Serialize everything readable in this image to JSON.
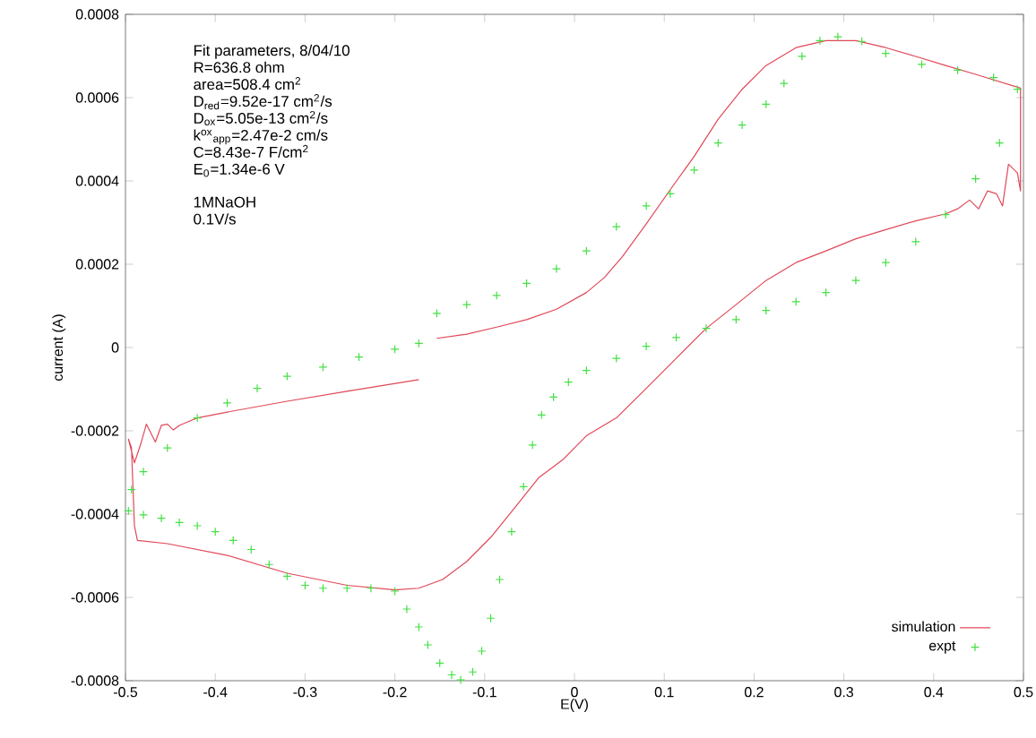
{
  "chart_data": {
    "type": "line",
    "xlabel": "E(V)",
    "ylabel": "current (A)",
    "xlim": [
      -0.5,
      0.5
    ],
    "xticks": [
      -0.5,
      -0.4,
      -0.3,
      -0.2,
      -0.1,
      0,
      0.1,
      0.2,
      0.3,
      0.4,
      0.5
    ],
    "ylim": [
      -0.0008,
      0.0008
    ],
    "yticks": [
      -0.0008,
      -0.0006,
      -0.0004,
      -0.0002,
      0,
      0.0002,
      0.0004,
      0.0006,
      0.0008
    ],
    "legend": "bottom right",
    "grid": false,
    "annotations": [
      "Fit parameters, 8/04/10",
      "R=636.8 ohm",
      "area=508.4 cm$^{2}$",
      "D$_{red}$=9.52e-17 cm$^{2}$/s",
      "D$_{ox}$=5.05e-13 cm$^{2}$/s",
      "k$^{ox}$$_{app}$=2.47e-2 cm/s",
      "C=8.43e-7 F/cm$^{2}$",
      "E$_{0}$=1.34e-6 V",
      "1MNaOH",
      "0.1V/s"
    ],
    "series": [
      {
        "name": "simulation",
        "color": "#e04858",
        "marker": "none",
        "line_style": "solid",
        "x": [
          -0.1533,
          -0.12,
          -0.0867,
          -0.0533,
          -0.02,
          0.0133,
          0.0333,
          0.0533,
          0.08,
          0.1067,
          0.1333,
          0.16,
          0.1867,
          0.2133,
          0.2467,
          0.28,
          0.3133,
          0.3467,
          0.38,
          0.4133,
          0.4467,
          0.4967,
          0.4967,
          0.4933,
          0.4833,
          0.4767,
          0.47,
          0.46,
          0.45,
          0.44,
          0.4267,
          0.4133,
          0.38,
          0.3467,
          0.3133,
          0.28,
          0.2467,
          0.2133,
          0.18,
          0.1467,
          0.1133,
          0.08,
          0.0467,
          0.0133,
          -0.0133,
          -0.04,
          -0.0667,
          -0.0933,
          -0.12,
          -0.1467,
          -0.1733,
          -0.2,
          -0.2533,
          -0.32,
          -0.3867,
          -0.4533,
          -0.4867,
          -0.49,
          -0.4933,
          -0.4967,
          -0.49,
          -0.4833,
          -0.4767,
          -0.4667,
          -0.46,
          -0.4533,
          -0.4467,
          -0.44,
          -0.43,
          -0.42,
          -0.3867,
          -0.32,
          -0.2533,
          -0.1733
        ],
        "values": [
          2.2e-05,
          3.2e-05,
          4.9e-05,
          6.7e-05,
          9.2e-05,
          0.000132,
          0.000168,
          0.000218,
          0.000297,
          0.000379,
          0.000459,
          0.000548,
          0.00062,
          0.000677,
          0.00072,
          0.000737,
          0.000737,
          0.00072,
          0.000699,
          0.000677,
          0.000656,
          0.000623,
          0.000376,
          0.000419,
          0.00044,
          0.00034,
          0.000369,
          0.000376,
          0.000333,
          0.000354,
          0.000333,
          0.000321,
          0.000304,
          0.000283,
          0.000261,
          0.000232,
          0.000204,
          0.000161,
          0.000103,
          4.6e-05,
          -2.6e-05,
          -9.8e-05,
          -0.000169,
          -0.000212,
          -0.00027,
          -0.000313,
          -0.000385,
          -0.000456,
          -0.000514,
          -0.000557,
          -0.000578,
          -0.000582,
          -0.000571,
          -0.000542,
          -0.000499,
          -0.000471,
          -0.000463,
          -0.000428,
          -0.000241,
          -0.00022,
          -0.000277,
          -0.000234,
          -0.000184,
          -0.000227,
          -0.000187,
          -0.000184,
          -0.000198,
          -0.000187,
          -0.000178,
          -0.000169,
          -0.000155,
          -0.000129,
          -0.000105,
          -7.7e-05
        ]
      },
      {
        "name": "expt",
        "type": "scatter",
        "color": "#44e044",
        "marker": "cross",
        "x": [
          -0.4967,
          -0.48,
          -0.46,
          -0.44,
          -0.42,
          -0.4,
          -0.38,
          -0.36,
          -0.34,
          -0.32,
          -0.3,
          -0.28,
          -0.2533,
          -0.2267,
          -0.2,
          -0.1867,
          -0.1733,
          -0.1633,
          -0.15,
          -0.1367,
          -0.1267,
          -0.1133,
          -0.1033,
          -0.0933,
          -0.0833,
          -0.07,
          -0.0567,
          -0.0467,
          -0.0367,
          -0.0233,
          -0.0067,
          0.0133,
          0.0467,
          0.08,
          0.1133,
          0.1467,
          0.18,
          0.2133,
          0.2467,
          0.28,
          0.3133,
          0.3467,
          0.38,
          0.4133,
          0.4467,
          0.4733,
          0.4933,
          0.4667,
          0.4267,
          0.3867,
          0.3467,
          0.32,
          0.2933,
          0.2733,
          0.2533,
          0.2333,
          0.2133,
          0.1867,
          0.16,
          0.1333,
          0.1067,
          0.08,
          0.0467,
          0.0133,
          -0.02,
          -0.0533,
          -0.0867,
          -0.12,
          -0.1533,
          -0.1733,
          -0.2,
          -0.24,
          -0.28,
          -0.32,
          -0.3533,
          -0.3867,
          -0.42,
          -0.4533,
          -0.48,
          -0.4933
        ],
        "values": [
          -0.000392,
          -0.000402,
          -0.00041,
          -0.00042,
          -0.000428,
          -0.000442,
          -0.000463,
          -0.000485,
          -0.000521,
          -0.000549,
          -0.000571,
          -0.000578,
          -0.000578,
          -0.000578,
          -0.000585,
          -0.000628,
          -0.000671,
          -0.000714,
          -0.000758,
          -0.000786,
          -0.000798,
          -0.000779,
          -0.000729,
          -0.00065,
          -0.000557,
          -0.000442,
          -0.000334,
          -0.000234,
          -0.000162,
          -0.000119,
          -8.3e-05,
          -5.5e-05,
          -2.6e-05,
          3e-06,
          2.4e-05,
          4.6e-05,
          6.7e-05,
          8.9e-05,
          0.00011,
          0.000132,
          0.000161,
          0.000204,
          0.000254,
          0.000319,
          0.000405,
          0.000491,
          0.00062,
          0.000648,
          0.000666,
          0.00068,
          0.000706,
          0.000735,
          0.000746,
          0.000737,
          0.000699,
          0.000634,
          0.000584,
          0.000534,
          0.000491,
          0.000426,
          0.000369,
          0.00034,
          0.00029,
          0.000232,
          0.000189,
          0.000154,
          0.000125,
          0.000103,
          8.2e-05,
          1e-05,
          -4e-06,
          -2.3e-05,
          -4.7e-05,
          -6.9e-05,
          -9.8e-05,
          -0.000133,
          -0.000169,
          -0.000241,
          -0.000298,
          -0.000341
        ]
      }
    ]
  }
}
